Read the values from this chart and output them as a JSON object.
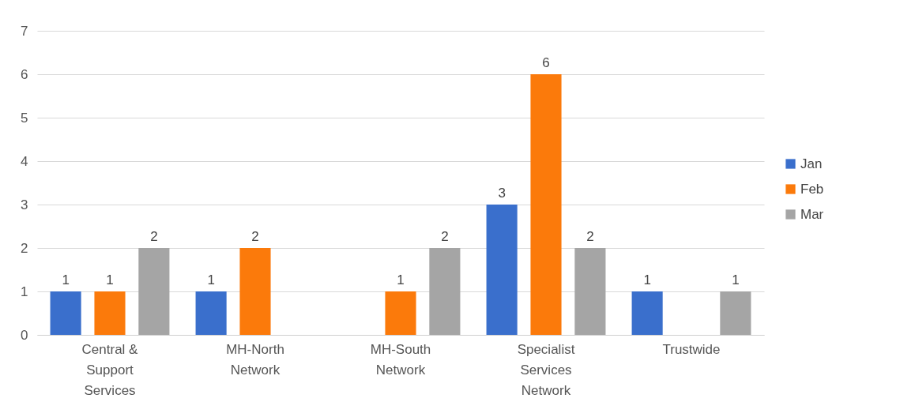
{
  "chart_data": {
    "type": "bar",
    "categories": [
      "Central & Support Services",
      "MH-North Network",
      "MH-South Network",
      "Specialist Services Network",
      "Trustwide"
    ],
    "series": [
      {
        "name": "Jan",
        "color": "#3a6fcc",
        "values": [
          1,
          1,
          null,
          3,
          1
        ]
      },
      {
        "name": "Feb",
        "color": "#fb7a0b",
        "values": [
          1,
          2,
          1,
          6,
          null
        ]
      },
      {
        "name": "Mar",
        "color": "#a5a5a5",
        "values": [
          2,
          null,
          2,
          2,
          1
        ]
      }
    ],
    "ylim": [
      0,
      7
    ],
    "yticks": [
      0,
      1,
      2,
      3,
      4,
      5,
      6,
      7
    ],
    "grid": "y",
    "legend": "right",
    "data_labels": true
  }
}
